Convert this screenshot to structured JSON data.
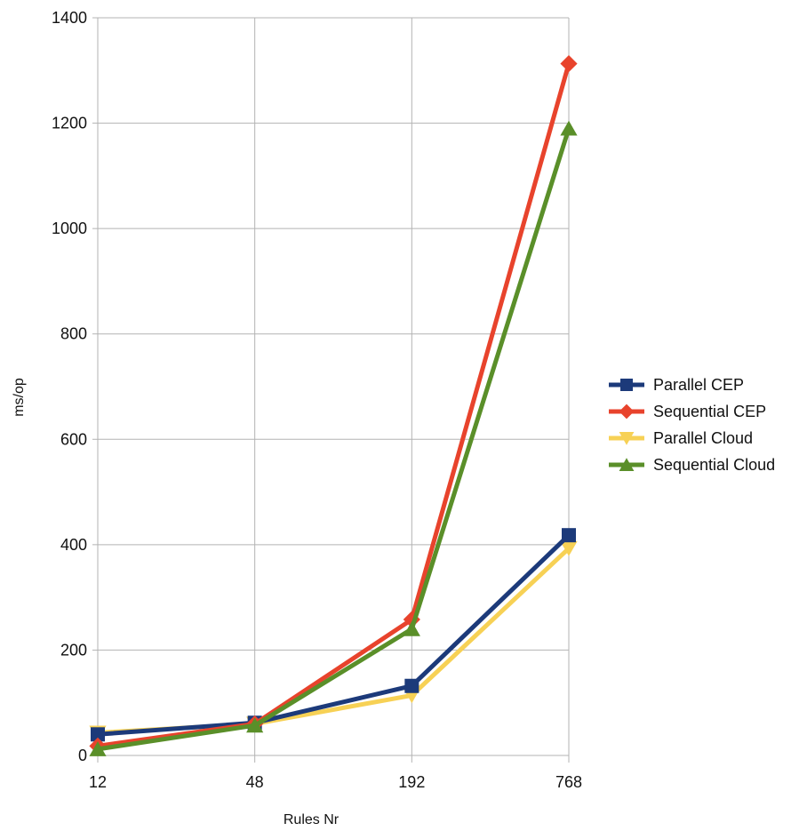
{
  "chart_data": {
    "type": "line",
    "title": "",
    "xlabel": "Rules Nr",
    "ylabel": "ms/op",
    "categories": [
      "12",
      "48",
      "192",
      "768"
    ],
    "ylim": [
      0,
      1400
    ],
    "yticks": [
      0,
      200,
      400,
      600,
      800,
      1000,
      1200,
      1400
    ],
    "grid": "horizontal",
    "legend_position": "right",
    "series": [
      {
        "name": "Parallel CEP",
        "values": [
          40,
          62,
          132,
          418
        ],
        "color": "#1c3a7a",
        "marker": "square"
      },
      {
        "name": "Sequential CEP",
        "values": [
          18,
          60,
          258,
          1313
        ],
        "color": "#e8432c",
        "marker": "diamond"
      },
      {
        "name": "Parallel Cloud",
        "values": [
          43,
          60,
          114,
          393
        ],
        "color": "#f7d155",
        "marker": "triangle-down"
      },
      {
        "name": "Sequential Cloud",
        "values": [
          12,
          57,
          240,
          1190
        ],
        "color": "#5a8f29",
        "marker": "triangle-up"
      }
    ],
    "draw_order": [
      2,
      0,
      1,
      3
    ]
  }
}
